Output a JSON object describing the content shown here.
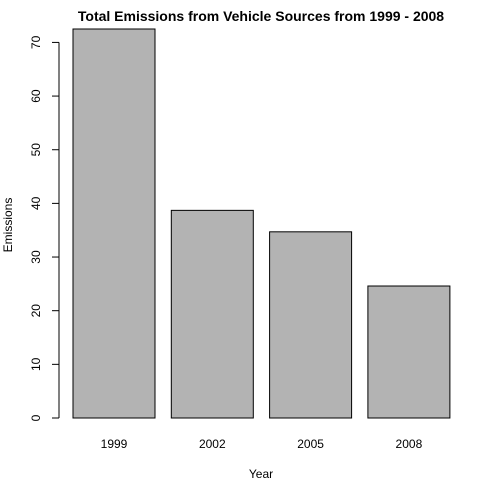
{
  "chart_data": {
    "type": "bar",
    "title": "Total Emissions from Vehicle Sources from 1999 - 2008",
    "xlabel": "Year",
    "ylabel": "Emissions",
    "categories": [
      "1999",
      "2002",
      "2005",
      "2008"
    ],
    "values": [
      72.5,
      38.7,
      34.7,
      24.6
    ],
    "ylim": [
      0,
      72.5
    ],
    "yticks": [
      0,
      10,
      20,
      30,
      40,
      50,
      60,
      70
    ],
    "bar_color": "#b3b3b3",
    "grid": false,
    "legend": "none"
  }
}
